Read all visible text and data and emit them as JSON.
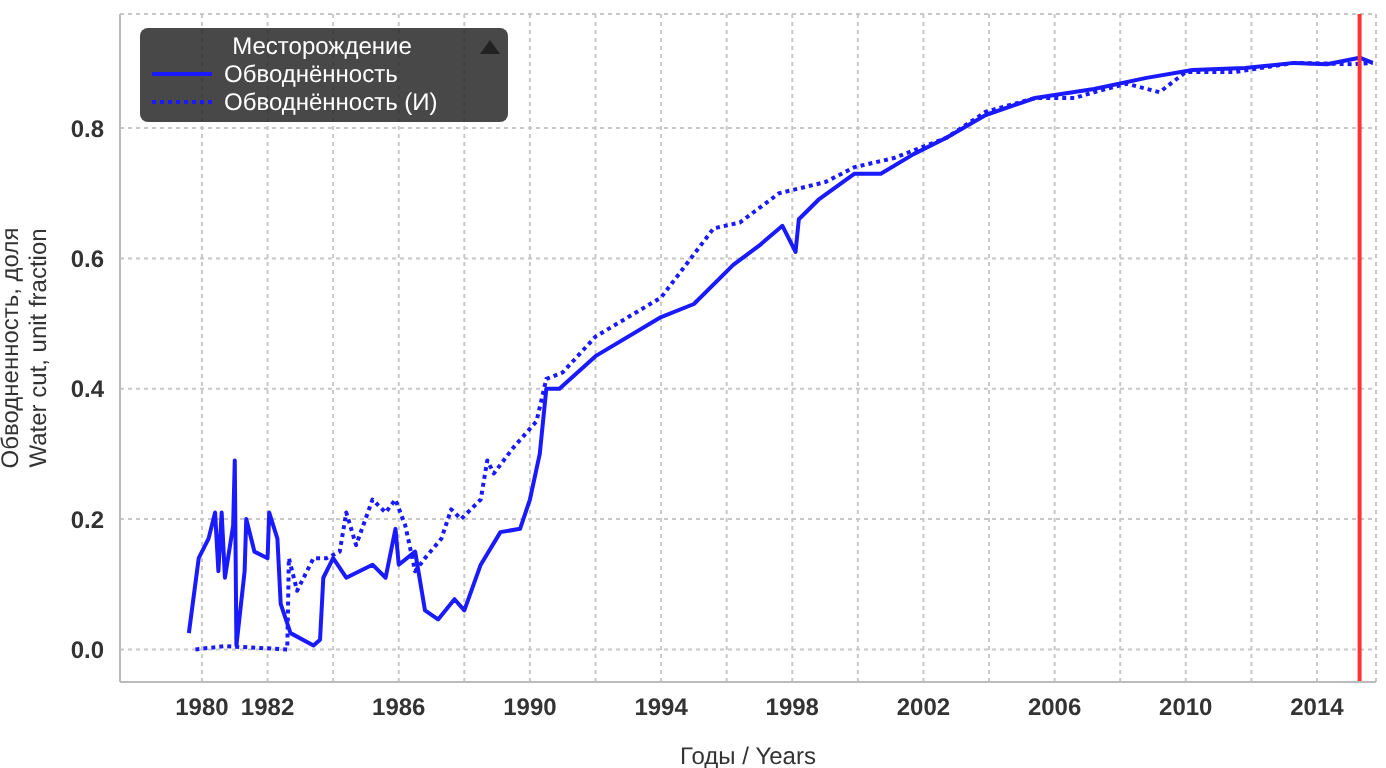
{
  "chart_data": {
    "type": "line",
    "xlabel": "Годы / Years",
    "ylabel": "Обводненность, доля\nWater cut, unit fraction",
    "legend_title": "Месторождение",
    "legend": "top left",
    "grid": true,
    "xlim": [
      1977.5,
      2015.8
    ],
    "ylim": [
      -0.05,
      0.975
    ],
    "xticks": [
      1980,
      1982,
      {
        "value": 1984,
        "label": null
      },
      1986,
      {
        "value": 1988,
        "label": null
      },
      1990,
      {
        "value": 1992,
        "label": null
      },
      1994,
      {
        "value": 1996,
        "label": null
      },
      1998,
      {
        "value": 2000,
        "label": null
      },
      2002,
      {
        "value": 2004,
        "label": null
      },
      2006,
      {
        "value": 2008,
        "label": null
      },
      2010,
      {
        "value": 2012,
        "label": null
      },
      2014
    ],
    "yticks": [
      {
        "value": 0,
        "label": "0.0"
      },
      0.2,
      0.4,
      0.6,
      0.8
    ],
    "ref_lines": [
      {
        "axis": "x",
        "value": 2015.3,
        "color": "#ff3333"
      }
    ],
    "series": [
      {
        "name": "Обводнённость",
        "color": "#1a1aff",
        "line_style": "solid",
        "x": [
          1979.6,
          1979.9,
          1980.2,
          1980.4,
          1980.5,
          1980.6,
          1980.7,
          1980.95,
          1981.0,
          1981.05,
          1981.3,
          1981.35,
          1981.6,
          1982.0,
          1982.05,
          1982.3,
          1982.4,
          1982.7,
          1983.4,
          1983.6,
          1983.7,
          1984.0,
          1984.4,
          1984.8,
          1985.2,
          1985.6,
          1985.9,
          1986.0,
          1986.5,
          1986.8,
          1987.2,
          1987.7,
          1988.0,
          1988.5,
          1989.1,
          1989.7,
          1990.0,
          1990.3,
          1990.5,
          1990.9,
          1992.0,
          1994.0,
          1995.0,
          1996.2,
          1997.0,
          1997.7,
          1998.1,
          1998.2,
          1998.8,
          1999.9,
          2000.7,
          2001.7,
          2002.7,
          2003.9,
          2005.4,
          2007.2,
          2008.8,
          2010.2,
          2011.8,
          2013.3,
          2014.3,
          2015.3,
          2015.7
        ],
        "values": [
          0.025,
          0.14,
          0.17,
          0.21,
          0.12,
          0.21,
          0.11,
          0.19,
          0.29,
          0.006,
          0.12,
          0.2,
          0.15,
          0.14,
          0.21,
          0.17,
          0.07,
          0.025,
          0.006,
          0.015,
          0.11,
          0.14,
          0.11,
          0.12,
          0.13,
          0.11,
          0.185,
          0.13,
          0.15,
          0.06,
          0.046,
          0.077,
          0.06,
          0.13,
          0.18,
          0.185,
          0.23,
          0.3,
          0.4,
          0.4,
          0.45,
          0.51,
          0.53,
          0.59,
          0.62,
          0.65,
          0.61,
          0.66,
          0.69,
          0.73,
          0.73,
          0.76,
          0.785,
          0.82,
          0.846,
          0.86,
          0.877,
          0.889,
          0.892,
          0.9,
          0.898,
          0.908,
          0.9
        ]
      },
      {
        "name": "Обводнённость (И)",
        "color": "#1a1aff",
        "line_style": "dotted",
        "x": [
          1979.8,
          1980.7,
          1982.6,
          1982.65,
          1982.9,
          1983.4,
          1983.8,
          1984.2,
          1984.4,
          1984.7,
          1985.2,
          1985.6,
          1985.9,
          1986.2,
          1986.5,
          1986.8,
          1987.3,
          1987.6,
          1987.9,
          1988.5,
          1988.7,
          1988.9,
          1989.5,
          1990.2,
          1990.5,
          1991.0,
          1992.0,
          1993.0,
          1994.0,
          1995.6,
          1996.4,
          1997.6,
          1999.0,
          1999.9,
          2001.1,
          2002.7,
          2003.9,
          2005.4,
          2006.6,
          2007.2,
          2008.2,
          2009.2,
          2010.0,
          2011.5,
          2013.3,
          2015.1,
          2015.7
        ],
        "values": [
          0,
          0.005,
          0,
          0.14,
          0.09,
          0.14,
          0.14,
          0.15,
          0.21,
          0.16,
          0.23,
          0.21,
          0.23,
          0.19,
          0.12,
          0.14,
          0.17,
          0.215,
          0.2,
          0.23,
          0.29,
          0.27,
          0.31,
          0.35,
          0.415,
          0.425,
          0.48,
          0.51,
          0.54,
          0.646,
          0.655,
          0.7,
          0.717,
          0.74,
          0.754,
          0.785,
          0.825,
          0.846,
          0.846,
          0.855,
          0.868,
          0.855,
          0.886,
          0.886,
          0.9,
          0.898,
          0.9
        ]
      }
    ]
  }
}
